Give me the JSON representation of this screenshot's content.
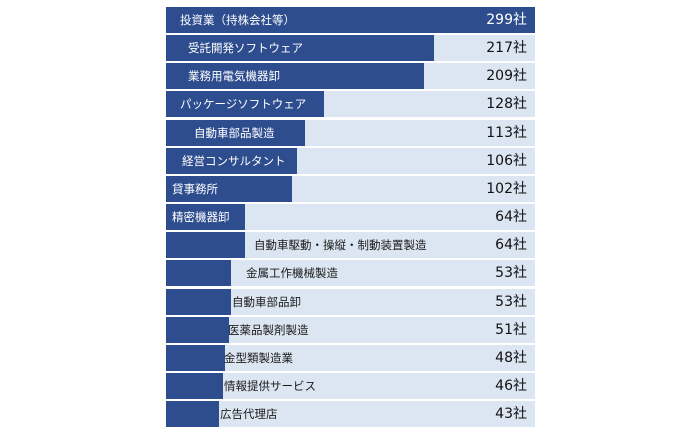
{
  "chart_data": {
    "type": "bar",
    "orientation": "horizontal",
    "value_suffix": "社",
    "categories": [
      "投資業（持株会社等）",
      "受託開発ソフトウェア",
      "業務用電気機器卸",
      "パッケージソフトウェア",
      "自動車部品製造",
      "経営コンサルタント",
      "貸事務所",
      "精密機器卸",
      "自動車駆動・操縦・制動装置製造",
      "金属工作機械製造",
      "自動車部品卸",
      "医薬品製剤製造",
      "金型類製造業",
      "情報提供サービス",
      "広告代理店"
    ],
    "values": [
      299,
      217,
      209,
      128,
      113,
      106,
      102,
      64,
      64,
      53,
      53,
      51,
      48,
      46,
      43
    ],
    "labels": [
      "299社",
      "217社",
      "209社",
      "128社",
      "113社",
      "106社",
      "102社",
      "64社",
      "64社",
      "53社",
      "53社",
      "51社",
      "48社",
      "46社",
      "43社"
    ],
    "xlim": [
      0,
      299
    ],
    "grid": false,
    "legend": "none",
    "colors": {
      "bar": "#2e4d8f",
      "track": "#dce6f2",
      "text_on_bar": "#ffffff",
      "text": "#1a1a1a"
    }
  }
}
